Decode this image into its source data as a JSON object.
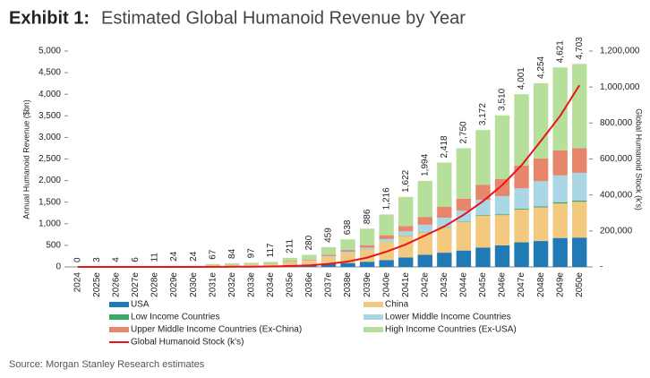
{
  "chart_data": {
    "type": "bar",
    "exhibit": "Exhibit 1:",
    "title": "Estimated Global Humanoid Revenue by Year",
    "y_label": "Annual Humanoid Revenue ($bn)",
    "y2_label": "Global Humanoid Stock (k's)",
    "source": "Source: Morgan Stanley Research estimates",
    "stacked": true,
    "categories": [
      "2024",
      "2025e",
      "2026e",
      "2027e",
      "2028e",
      "2029e",
      "2030e",
      "2031e",
      "2032e",
      "2033e",
      "2034e",
      "2035e",
      "2036e",
      "2037e",
      "2038e",
      "2039e",
      "2040e",
      "2041e",
      "2042e",
      "2043e",
      "2044e",
      "2045e",
      "2046e",
      "2047e",
      "2048e",
      "2049e",
      "2050e"
    ],
    "series": [
      {
        "name": "USA",
        "color": "#1f7ab5",
        "values": [
          0,
          1,
          1,
          2,
          3,
          6,
          6,
          15,
          18,
          20,
          25,
          40,
          50,
          70,
          90,
          120,
          160,
          220,
          280,
          330,
          380,
          450,
          500,
          570,
          600,
          670,
          680
        ]
      },
      {
        "name": "China",
        "color": "#f2c97e",
        "values": [
          0,
          1,
          1,
          2,
          3,
          8,
          8,
          20,
          25,
          30,
          35,
          70,
          90,
          160,
          230,
          280,
          420,
          500,
          520,
          580,
          660,
          740,
          700,
          760,
          780,
          800,
          830
        ]
      },
      {
        "name": "Low Income Countries",
        "color": "#3aa86b",
        "values": [
          0,
          0,
          0,
          0,
          0,
          0,
          0,
          0,
          0,
          0,
          0,
          1,
          1,
          2,
          3,
          4,
          5,
          6,
          8,
          10,
          12,
          15,
          20,
          20,
          25,
          30,
          30
        ]
      },
      {
        "name": "Lower Middle Income Countries",
        "color": "#a9d7e6",
        "values": [
          0,
          0,
          0,
          0,
          0,
          1,
          1,
          2,
          3,
          4,
          5,
          8,
          10,
          20,
          30,
          40,
          60,
          100,
          170,
          220,
          250,
          350,
          420,
          470,
          580,
          620,
          640
        ]
      },
      {
        "name": "Upper Middle Income Countries (Ex-China)",
        "color": "#e8866b",
        "values": [
          0,
          0,
          0,
          0,
          1,
          1,
          1,
          4,
          5,
          6,
          8,
          15,
          20,
          30,
          40,
          60,
          90,
          120,
          180,
          250,
          280,
          350,
          400,
          530,
          530,
          580,
          570
        ]
      },
      {
        "name": "High Income Countries (Ex-USA)",
        "color": "#b6df9c",
        "values": [
          0,
          1,
          2,
          2,
          4,
          8,
          8,
          26,
          33,
          37,
          44,
          77,
          109,
          177,
          245,
          382,
          481,
          676,
          836,
          1028,
          1168,
          1267,
          1470,
          1651,
          1739,
          1921,
          1953
        ]
      },
      {
        "name": "Global Humanoid Stock (k's)",
        "color": "#e8141c",
        "axis": "y2",
        "line": true,
        "values": [
          0,
          5,
          10,
          20,
          50,
          100,
          200,
          500,
          1000,
          1500,
          2500,
          5000,
          9000,
          17000,
          30000,
          52000,
          85000,
          125000,
          175000,
          225000,
          290000,
          365000,
          455000,
          565000,
          700000,
          840000,
          1010000
        ]
      }
    ],
    "totals": {
      "values": [
        0,
        3,
        4,
        6,
        11,
        24,
        24,
        67,
        84,
        97,
        117,
        211,
        280,
        459,
        638,
        886,
        1216,
        1622,
        1994,
        2418,
        2750,
        3172,
        3510,
        4001,
        4254,
        4621,
        4703
      ],
      "value_labels": [
        "0",
        "3",
        "4",
        "6",
        "11",
        "24",
        "24",
        "67",
        "84",
        "97",
        "117",
        "211",
        "280",
        "459",
        "638",
        "886",
        "1,216",
        "1,622",
        "1,994",
        "2,418",
        "2,750",
        "3,172",
        "3,510",
        "4,001",
        "4,254",
        "4,621",
        "4,703"
      ]
    },
    "ylim": [
      0,
      5000
    ],
    "yticks": [
      0,
      500,
      {
        "value": 1000,
        "label": "1,000"
      },
      {
        "value": 1500,
        "label": "1,500"
      },
      {
        "value": 2000,
        "label": "2,000"
      },
      {
        "value": 2500,
        "label": "2,500"
      },
      {
        "value": 3000,
        "label": "3,000"
      },
      {
        "value": 3500,
        "label": "3,500"
      },
      {
        "value": 4000,
        "label": "4,000"
      },
      {
        "value": 4500,
        "label": "4,500"
      },
      {
        "value": 5000,
        "label": "5,000"
      }
    ],
    "y2lim": [
      0,
      1200000
    ],
    "y2ticks": [
      {
        "value": 0,
        "label": "-"
      },
      {
        "value": 200000,
        "label": "200,000"
      },
      {
        "value": 400000,
        "label": "400,000"
      },
      {
        "value": 600000,
        "label": "600,000"
      },
      {
        "value": 800000,
        "label": "800,000"
      },
      {
        "value": 1000000,
        "label": "1,000,000"
      },
      {
        "value": 1200000,
        "label": "1,200,000"
      }
    ],
    "grid": false
  }
}
